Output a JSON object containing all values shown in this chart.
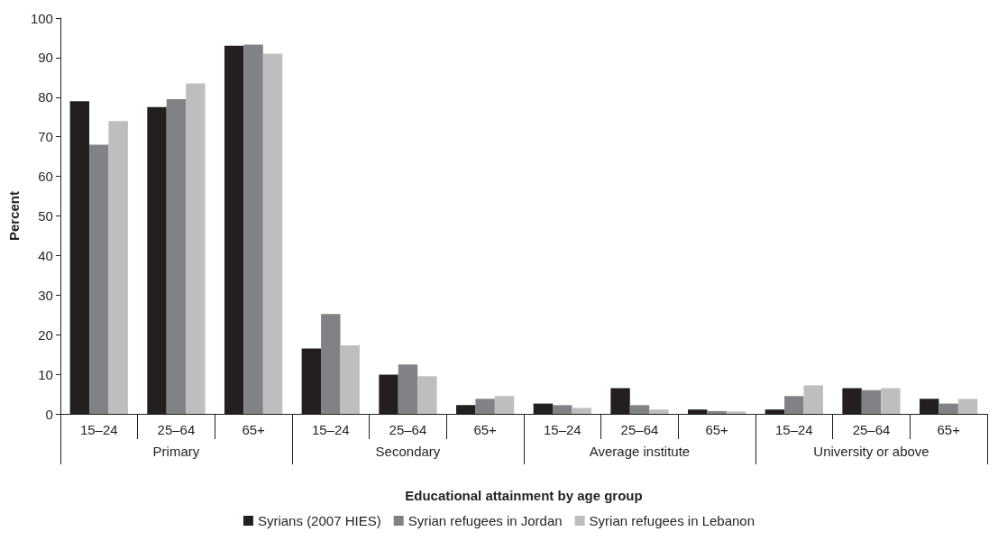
{
  "chart_data": {
    "type": "bar",
    "xlabel": "Educational attainment by age group",
    "ylabel": "Percent",
    "categories": [
      "15–24",
      "25–64",
      "65+",
      "15–24",
      "25–64",
      "65+",
      "15–24",
      "25–64",
      "65+",
      "15–24",
      "25–64",
      "65+"
    ],
    "annotations": [
      "Primary",
      "Secondary",
      "Average institute",
      "University or above"
    ],
    "series": [
      {
        "name": "Syrians (2007 HIES)",
        "color": "#231f20",
        "values": [
          79,
          77.5,
          93,
          16.5,
          9.9,
          2.2,
          2.6,
          6.5,
          1.1,
          1.1,
          6.5,
          3.8
        ]
      },
      {
        "name": "Syrian refugees in Jordan",
        "color": "#808285",
        "values": [
          68,
          79.5,
          93.3,
          25.2,
          12.5,
          3.8,
          2.2,
          2.2,
          0.7,
          4.5,
          6,
          2.6
        ]
      },
      {
        "name": "Syrian refugees in Lebanon",
        "color": "#bcbec0",
        "values": [
          74,
          83.5,
          91,
          17.3,
          9.5,
          4.5,
          1.5,
          1.1,
          0.6,
          7.2,
          6.5,
          3.8
        ]
      }
    ],
    "ylim": [
      0,
      100
    ],
    "yticks": [
      0,
      10,
      20,
      30,
      40,
      50,
      60,
      70,
      80,
      90,
      100
    ],
    "grid": false,
    "legend": "bottom"
  }
}
